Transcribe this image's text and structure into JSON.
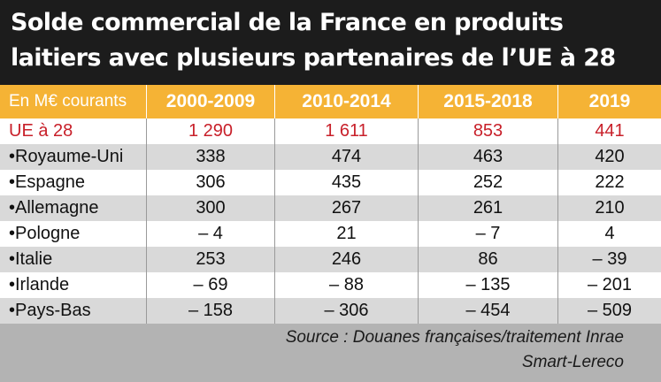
{
  "title_lines": [
    "Solde commercial de la France en produits",
    "laitiers avec plusieurs partenaires de l’UE à 28"
  ],
  "source_lines": [
    "Source : Douanes françaises/traitement Inrae",
    "Smart-Lereco"
  ],
  "colors": {
    "title_bg": "#1c1c1c",
    "header_bg": "#f5b335",
    "ue_text": "#c8202a",
    "row_alt": "#d9d9d9",
    "footer_bg": "#b3b3b3"
  },
  "chart_data": {
    "type": "table",
    "unit_label": "En M€ courants",
    "columns": [
      "2000-2009",
      "2010-2014",
      "2015-2018",
      "2019"
    ],
    "rows": [
      {
        "label": "UE à 28",
        "values": [
          "1 290",
          "1 611",
          "853",
          "441"
        ]
      },
      {
        "label": "•Royaume-Uni",
        "values": [
          "338",
          "474",
          "463",
          "420"
        ]
      },
      {
        "label": "•Espagne",
        "values": [
          "306",
          "435",
          "252",
          "222"
        ]
      },
      {
        "label": "•Allemagne",
        "values": [
          "300",
          "267",
          "261",
          "210"
        ]
      },
      {
        "label": "•Pologne",
        "values": [
          "– 4",
          "21",
          "– 7",
          "4"
        ]
      },
      {
        "label": "•Italie",
        "values": [
          "253",
          "246",
          "86",
          "– 39"
        ]
      },
      {
        "label": "•Irlande",
        "values": [
          "– 69",
          "– 88",
          "– 135",
          "– 201"
        ]
      },
      {
        "label": "•Pays-Bas",
        "values": [
          "– 158",
          "– 306",
          "– 454",
          "– 509"
        ]
      }
    ]
  }
}
